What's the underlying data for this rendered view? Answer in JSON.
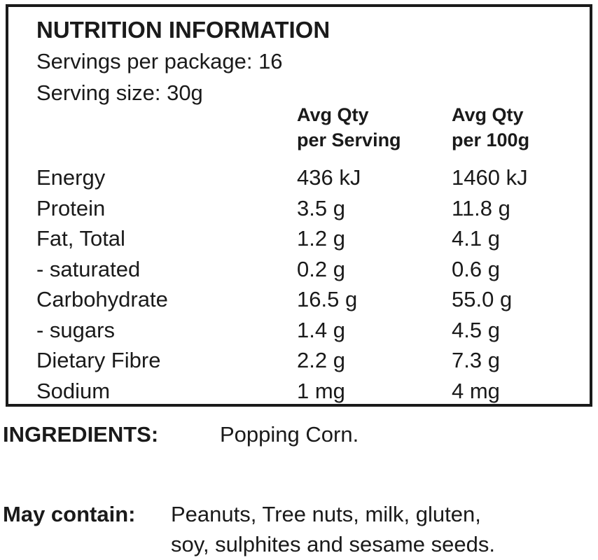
{
  "panel": {
    "title": "NUTRITION INFORMATION",
    "servings_per_package": "Servings per package: 16",
    "serving_size": "Serving size: 30g",
    "columns": [
      {
        "line1": "Avg Qty",
        "line2": "per Serving"
      },
      {
        "line1": "Avg Qty",
        "line2": "per 100g"
      }
    ],
    "rows": [
      {
        "name": "Energy",
        "per_serving": "436 kJ",
        "per_100g": "1460 kJ"
      },
      {
        "name": "Protein",
        "per_serving": "3.5 g",
        "per_100g": "11.8 g"
      },
      {
        "name": "Fat, Total",
        "per_serving": "1.2 g",
        "per_100g": "4.1 g"
      },
      {
        "name": "- saturated",
        "per_serving": "0.2 g",
        "per_100g": "0.6 g"
      },
      {
        "name": "Carbohydrate",
        "per_serving": "16.5 g",
        "per_100g": "55.0 g"
      },
      {
        "name": "- sugars",
        "per_serving": "1.4 g",
        "per_100g": "4.5 g"
      },
      {
        "name": "Dietary Fibre",
        "per_serving": "2.2 g",
        "per_100g": "7.3 g"
      },
      {
        "name": "Sodium",
        "per_serving": "1 mg",
        "per_100g": "4 mg"
      }
    ]
  },
  "ingredients": {
    "label": "INGREDIENTS:",
    "value": "Popping Corn."
  },
  "may_contain": {
    "label": "May contain:",
    "line1": "Peanuts, Tree nuts, milk, gluten,",
    "line2": "soy, sulphites and sesame seeds."
  }
}
